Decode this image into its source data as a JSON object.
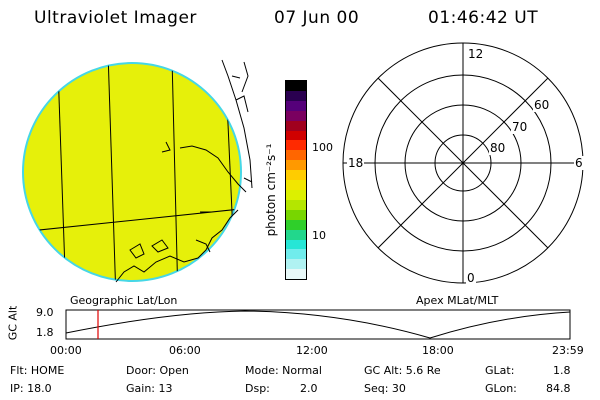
{
  "header": {
    "instrument": "Ultraviolet Imager",
    "date": "07 Jun 00",
    "time": "01:46:42 UT"
  },
  "colors": {
    "imageFill": "#e6f00a",
    "imageRim": "#46d7e6",
    "cursor": "#e00000"
  },
  "colorbar": {
    "unit_label": "photon cm⁻²s⁻¹",
    "tick_100": "100",
    "tick_10": "10",
    "colors": [
      "#000000",
      "#2a0050",
      "#55007a",
      "#7a0060",
      "#a0001e",
      "#d00000",
      "#ff2a00",
      "#ff6600",
      "#ff9900",
      "#ffcc00",
      "#f2e600",
      "#dcf000",
      "#b4e600",
      "#78d600",
      "#2fcf2a",
      "#22d78c",
      "#26e6d6",
      "#70ecec",
      "#b0f2f2",
      "#e8f8f8"
    ]
  },
  "polar": {
    "mlt_12": "12",
    "mlt_18": "18",
    "mlt_6": "6",
    "mlt_0": "0",
    "lat_60": "60",
    "lat_70": "70",
    "lat_80": "80"
  },
  "map_labels": {
    "left": "Geographic Lat/Lon",
    "right": "Apex MLat/MLT"
  },
  "altitude_plot": {
    "ylabel": "GC Alt",
    "y_max": "9.0",
    "y_min": "1.8",
    "x_ticks": [
      "00:00",
      "06:00",
      "12:00",
      "18:00",
      "23:59"
    ]
  },
  "status": {
    "flt": "Flt: HOME",
    "ip": "IP: 18.0",
    "door": "Door: Open",
    "gain": "Gain: 13",
    "mode": "Mode: Normal",
    "dsp_label": "Dsp:",
    "dsp_value": "2.0",
    "gcalt": "GC Alt: 5.6 Re",
    "seq": "Seq: 30",
    "glat_label": "GLat:",
    "glat_value": "1.8",
    "glon_label": "GLon:",
    "glon_value": "84.8"
  }
}
